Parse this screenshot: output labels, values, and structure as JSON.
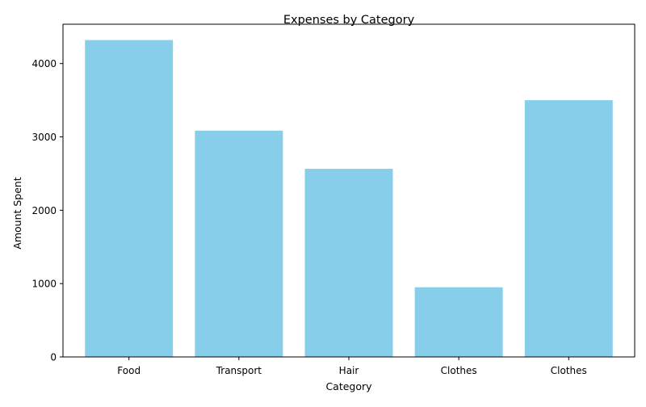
{
  "chart_data": {
    "type": "bar",
    "title": "Expenses by Category",
    "xlabel": "Category",
    "ylabel": "Amount Spent",
    "categories": [
      "Food",
      "Transport",
      "Hair",
      "Clothes",
      "Clothes"
    ],
    "values": [
      4320,
      3085,
      2565,
      950,
      3500
    ],
    "ylim": [
      0,
      4536
    ],
    "yticks": [
      0,
      1000,
      2000,
      3000,
      4000
    ],
    "bar_color": "#87ceeb",
    "grid": false,
    "legend": "none"
  }
}
